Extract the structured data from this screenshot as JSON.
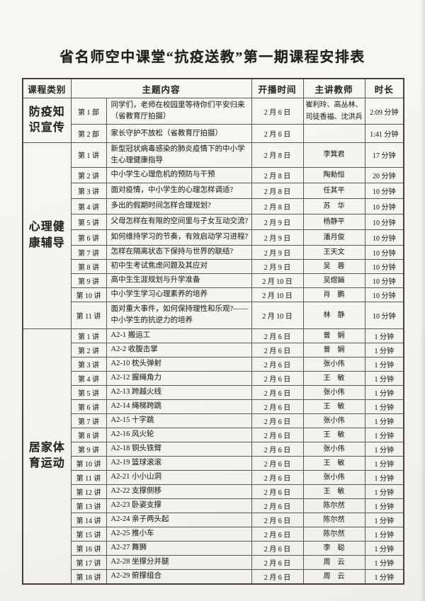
{
  "page_title": "省名师空中课堂“抗疫送教”第一期课程安排表",
  "table": {
    "headers": {
      "category": "课程类别",
      "topic": "主题内容",
      "time": "开播时间",
      "teacher": "主讲教师",
      "duration": "时长"
    },
    "sections": [
      {
        "category": "防疫知识宣传",
        "rows": [
          {
            "no": "第 1 部",
            "topic": "同学们，老师在校园里等待你们平安归来（省教育厅拍摄）",
            "time": "2 月 6 日",
            "teacher": "崔利玲、高丛林、司徒香福、沈洪兵",
            "duration": "2:09 分钟"
          },
          {
            "no": "第 2 部",
            "topic": "家长守护不放松（省教育厅拍摄）",
            "time": "2 月 6 日",
            "teacher": "",
            "duration": "1:41 分钟"
          }
        ]
      },
      {
        "category": "心理健康辅导",
        "rows": [
          {
            "no": "第 1 讲",
            "topic": "新型冠状病毒感染的肺炎疫情下的中小学生心理健康指导",
            "time": "2 月 8 日",
            "teacher": "李箕君",
            "duration": "17 分钟"
          },
          {
            "no": "第 2 讲",
            "topic": "中小学生心理危机的预防与干预",
            "time": "2 月 8 日",
            "teacher": "陶勑恒",
            "duration": "20 分钟"
          },
          {
            "no": "第 3 讲",
            "topic": "面对疫情，中小学生的心理怎样调适?",
            "time": "2 月 8 日",
            "teacher": "任其平",
            "duration": "10 分钟"
          },
          {
            "no": "第 4 讲",
            "topic": "多出的假期时间怎样合理规划?",
            "time": "2 月 8 日",
            "teacher": "苏　华",
            "duration": "10 分钟"
          },
          {
            "no": "第 5 讲",
            "topic": "父母怎样在有限的空间里与子女互动交流?",
            "time": "2 月 9 日",
            "teacher": "杨静平",
            "duration": "10 分钟"
          },
          {
            "no": "第 6 讲",
            "topic": "如何维持学习的节奏，有效启动学习进程?",
            "time": "2 月 9 日",
            "teacher": "潘月俊",
            "duration": "10 分钟"
          },
          {
            "no": "第 7 讲",
            "topic": "怎样在隔离状态下保持与世界的联结?",
            "time": "2 月 9 日",
            "teacher": "王天文",
            "duration": "10 分钟"
          },
          {
            "no": "第 8 讲",
            "topic": "初中生考试焦虑问题及其应对",
            "time": "2 月 9 日",
            "teacher": "吴　蓉",
            "duration": "10 分钟"
          },
          {
            "no": "第 9 讲",
            "topic": "高中生生涯规划与升学准备",
            "time": "2 月 10 日",
            "teacher": "吴煜婳",
            "duration": "10 分钟"
          },
          {
            "no": "第 10 讲",
            "topic": "中小学生学习心理素养的培养",
            "time": "2 月 10 日",
            "teacher": "肖　鹏",
            "duration": "10 分钟"
          },
          {
            "no": "第 11 讲",
            "topic": "面对重大事件，如何保持理性和乐观?——中小学生的抗逆力的培养",
            "time": "2 月 10 日",
            "teacher": "林　静",
            "duration": "10 分钟"
          }
        ]
      },
      {
        "category": "居家体育运动",
        "rows": [
          {
            "no": "第 1 讲",
            "topic": "A2-1 搬运工",
            "time": "2 月 6 日",
            "teacher": "曾　娴",
            "duration": "1 分钟"
          },
          {
            "no": "第 2 讲",
            "topic": "A2-2 收腹击掌",
            "time": "2 月 6 日",
            "teacher": "曾　娴",
            "duration": "1 分钟"
          },
          {
            "no": "第 3 讲",
            "topic": "A2-10 枕头弹射",
            "time": "2 月 6 日",
            "teacher": "张小伟",
            "duration": "1 分钟"
          },
          {
            "no": "第 4 讲",
            "topic": "A2-12 握绳角力",
            "time": "2 月 6 日",
            "teacher": "王　敏",
            "duration": "1 分钟"
          },
          {
            "no": "第 5 讲",
            "topic": "A2-13 跨越火线",
            "time": "2 月 6 日",
            "teacher": "张小伟",
            "duration": "1 分钟"
          },
          {
            "no": "第 6 讲",
            "topic": "A2-14 绳梯跨跳",
            "time": "2 月 6 日",
            "teacher": "王　敏",
            "duration": "1 分钟"
          },
          {
            "no": "第 7 讲",
            "topic": "A2-15 十字跳",
            "time": "2 月 6 日",
            "teacher": "张小伟",
            "duration": "1 分钟"
          },
          {
            "no": "第 8 讲",
            "topic": "A2-16 风火轮",
            "time": "2 月 6 日",
            "teacher": "王　敏",
            "duration": "1 分钟"
          },
          {
            "no": "第 9 讲",
            "topic": "A2-18 铜头铁臂",
            "time": "2 月 6 日",
            "teacher": "张小伟",
            "duration": "1 分钟"
          },
          {
            "no": "第 10 讲",
            "topic": "A2-19 篮球滚滚",
            "time": "2 月 6 日",
            "teacher": "王　敏",
            "duration": "1 分钟"
          },
          {
            "no": "第 11 讲",
            "topic": "A2-21 小小山洞",
            "time": "2 月 6 日",
            "teacher": "张小伟",
            "duration": "1 分钟"
          },
          {
            "no": "第 12 讲",
            "topic": "A2-22 支撑侧移",
            "time": "2 月 6 日",
            "teacher": "王　敏",
            "duration": "1 分钟"
          },
          {
            "no": "第 13 讲",
            "topic": "A2-23 卧姿支撑",
            "time": "2 月 6 日",
            "teacher": "陈尔然",
            "duration": "1 分钟"
          },
          {
            "no": "第 14 讲",
            "topic": "A2-24 亲子两头起",
            "time": "2 月 6 日",
            "teacher": "陈尔然",
            "duration": "1 分钟"
          },
          {
            "no": "第 15 讲",
            "topic": "A2-25 推小车",
            "time": "2 月 6 日",
            "teacher": "陈尔然",
            "duration": "1 分钟"
          },
          {
            "no": "第 16 讲",
            "topic": "A2-27 舞狮",
            "time": "2 月 6 日",
            "teacher": "李　聪",
            "duration": "1 分钟"
          },
          {
            "no": "第 17 讲",
            "topic": "A2-28 坐撑分并腿",
            "time": "2 月 6 日",
            "teacher": "周　云",
            "duration": "1 分钟"
          },
          {
            "no": "第 18 讲",
            "topic": "A2-29 俯撑组合",
            "time": "2 月 6 日",
            "teacher": "周　云",
            "duration": "1 分钟"
          }
        ]
      }
    ]
  }
}
